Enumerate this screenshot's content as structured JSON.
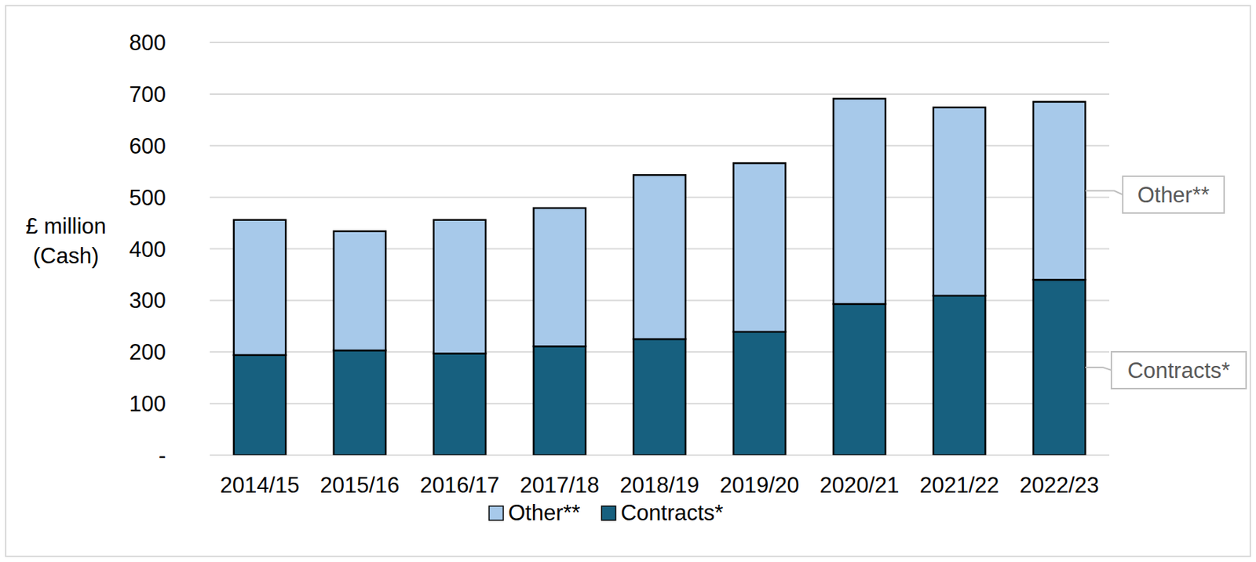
{
  "chart_data": {
    "type": "bar",
    "stacked": true,
    "grid": true,
    "legend": "bottom",
    "y_label": "£ million (Cash)",
    "categories": [
      "2014/15",
      "2015/16",
      "2016/17",
      "2017/18",
      "2018/19",
      "2019/20",
      "2020/21",
      "2021/22",
      "2022/23"
    ],
    "series": [
      {
        "name": "Contracts*",
        "color": "#17607f",
        "values": [
          194,
          203,
          197,
          211,
          225,
          239,
          293,
          309,
          340
        ]
      },
      {
        "name": "Other**",
        "color": "#a7c9ea",
        "values": [
          262,
          231,
          259,
          268,
          318,
          327,
          398,
          365,
          345
        ]
      }
    ],
    "ylim": [
      0,
      800
    ],
    "yticks": [
      {
        "value": 0,
        "label": "-"
      },
      100,
      200,
      300,
      400,
      500,
      600,
      700,
      800
    ]
  }
}
